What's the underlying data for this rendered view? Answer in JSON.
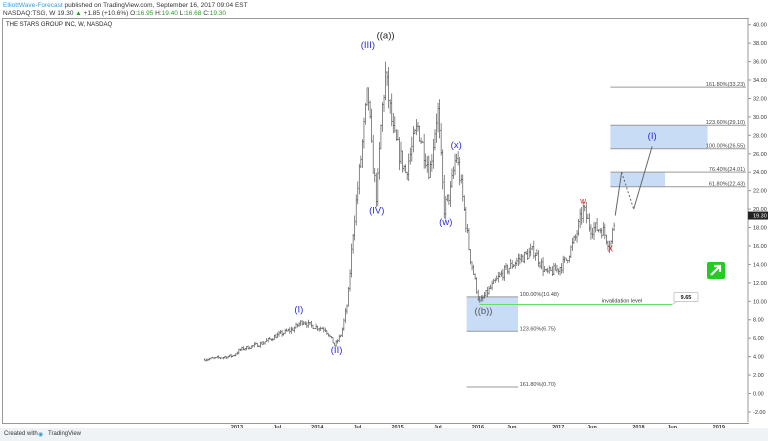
{
  "header": {
    "author": "ElliottWave-Forecast",
    "published": "published on TradingView.com, September 16, 2017 09:04 EST",
    "symbol": "NASDAQ:TSG, W",
    "last": "19.30",
    "change": "+1.85 (+10.6%)",
    "o_label": "O:",
    "o": "16.95",
    "h_label": "H:",
    "h": "19.40",
    "l_label": "L:",
    "l": "16.68",
    "c_label": "C:",
    "c": "19.30"
  },
  "chart_title": "THE STARS GROUP INC, W, NASDAQ",
  "colors": {
    "bars": "#555555",
    "wave_blue": "#2a2adb",
    "wave_red": "#e02020",
    "box": "#c9dcf5",
    "invalidation": "#66dd66",
    "arrow": "#22cc22"
  },
  "chart_data": {
    "type": "ohlc",
    "x_ticks": [
      "2013",
      "Jul",
      "2014",
      "Jul",
      "2015",
      "Jul",
      "2016",
      "Jun",
      "2017",
      "Jun",
      "2018",
      "Jun",
      "2019"
    ],
    "y_ticks": [
      "40.00",
      "38.00",
      "36.00",
      "34.00",
      "32.00",
      "30.00",
      "28.00",
      "26.00",
      "24.00",
      "22.00",
      "20.00",
      "18.00",
      "16.00",
      "14.00",
      "12.00",
      "10.00",
      "8.00",
      "6.00",
      "4.00",
      "2.00",
      "0.00",
      "-2.00"
    ],
    "ylim": [
      -2,
      40
    ],
    "last_price_label": "19.30",
    "price_path": [
      [
        2012.6,
        3.7
      ],
      [
        2012.8,
        3.9
      ],
      [
        2012.95,
        4.1
      ],
      [
        2013.05,
        4.8
      ],
      [
        2013.3,
        5.4
      ],
      [
        2013.5,
        6.3
      ],
      [
        2013.7,
        7.0
      ],
      [
        2013.82,
        7.9
      ],
      [
        2013.9,
        7.4
      ],
      [
        2014.1,
        7.0
      ],
      [
        2014.22,
        5.2
      ],
      [
        2014.3,
        6.5
      ],
      [
        2014.38,
        10
      ],
      [
        2014.45,
        18
      ],
      [
        2014.5,
        22
      ],
      [
        2014.56,
        27
      ],
      [
        2014.63,
        33
      ],
      [
        2014.68,
        26
      ],
      [
        2014.74,
        21
      ],
      [
        2014.8,
        30
      ],
      [
        2014.85,
        34.5
      ],
      [
        2014.95,
        28
      ],
      [
        2015.1,
        24
      ],
      [
        2015.25,
        29
      ],
      [
        2015.4,
        24
      ],
      [
        2015.5,
        31
      ],
      [
        2015.58,
        20
      ],
      [
        2015.66,
        22
      ],
      [
        2015.73,
        26
      ],
      [
        2015.8,
        22
      ],
      [
        2015.9,
        15
      ],
      [
        2016.02,
        9.8
      ],
      [
        2016.12,
        11
      ],
      [
        2016.3,
        13
      ],
      [
        2016.5,
        14.5
      ],
      [
        2016.7,
        15.5
      ],
      [
        2016.85,
        13
      ],
      [
        2017.0,
        13.5
      ],
      [
        2017.1,
        14.5
      ],
      [
        2017.22,
        17
      ],
      [
        2017.31,
        20
      ],
      [
        2017.4,
        18
      ],
      [
        2017.55,
        17.8
      ],
      [
        2017.65,
        16
      ],
      [
        2017.71,
        19.3
      ]
    ],
    "projection": [
      [
        2017.71,
        19.3
      ],
      [
        2017.79,
        24
      ],
      [
        2017.94,
        20
      ],
      [
        2018.17,
        26.8
      ]
    ],
    "fib_levels": [
      {
        "label": "161.80%(33.23)",
        "value": 33.23
      },
      {
        "label": "123.60%(29.10)",
        "value": 29.1
      },
      {
        "label": "100.00%(26.55)",
        "value": 26.55
      },
      {
        "label": "76.40%(24.01)",
        "value": 24.01
      },
      {
        "label": "61.80%(22.43)",
        "value": 22.43
      },
      {
        "label": "100.00%(10.48)",
        "value": 10.48
      },
      {
        "label": "123.60%(6.75)",
        "value": 6.75
      },
      {
        "label": "161.80%(0.70)",
        "value": 0.7
      }
    ],
    "invalidation": {
      "label": "invalidation level",
      "value_label": "9.65",
      "value": 9.65
    },
    "wave_labels": [
      {
        "text": "((a))",
        "date": 2014.85,
        "price": 38.5,
        "color": "black"
      },
      {
        "text": "(III)",
        "date": 2014.63,
        "price": 37.5,
        "color": "blue"
      },
      {
        "text": "(IV)",
        "date": 2014.74,
        "price": 19.5,
        "color": "blue"
      },
      {
        "text": "(I)",
        "date": 2013.77,
        "price": 8.8,
        "color": "blue"
      },
      {
        "text": "(II)",
        "date": 2014.24,
        "price": 4.4,
        "color": "blue"
      },
      {
        "text": "(w)",
        "date": 2015.6,
        "price": 18.3,
        "color": "blue"
      },
      {
        "text": "(x)",
        "date": 2015.73,
        "price": 26.6,
        "color": "blue"
      },
      {
        "text": "((b))",
        "date": 2016.07,
        "price": 8.6,
        "color": "gray"
      },
      {
        "text": "w",
        "date": 2017.31,
        "price": 20.6,
        "color": "red"
      },
      {
        "text": "X",
        "date": 2017.65,
        "price": 15.4,
        "color": "red"
      },
      {
        "text": "(I)",
        "date": 2018.17,
        "price": 27.6,
        "color": "blue"
      }
    ]
  },
  "footer": {
    "created": "Created with",
    "brand": "TradingView"
  }
}
